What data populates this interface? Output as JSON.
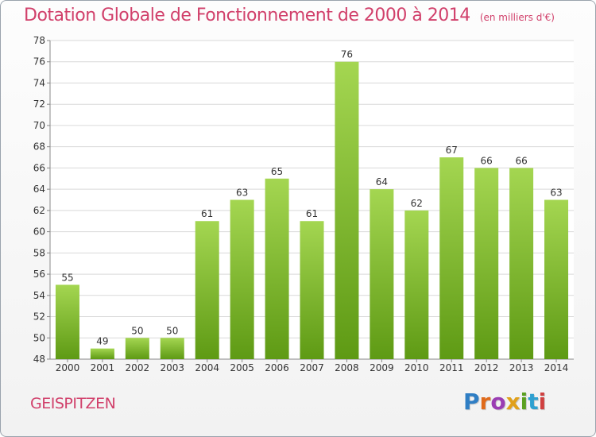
{
  "title": "Dotation Globale de Fonctionnement de 2000 à 2014",
  "subtitle": "(en milliers d'€)",
  "location": "GEISPITZEN",
  "logo": {
    "text": "Proxiti",
    "colors": [
      "#2f7ec4",
      "#e06a1a",
      "#9a3db3",
      "#e0a01a",
      "#5aa020",
      "#2fa0d0",
      "#d04040"
    ]
  },
  "colors": {
    "title": "#d1406b",
    "bar_light": "#a4d651",
    "bar_dark": "#5e9a14",
    "grid": "#d9d9d9"
  },
  "chart_data": {
    "type": "bar",
    "categories": [
      "2000",
      "2001",
      "2002",
      "2003",
      "2004",
      "2005",
      "2006",
      "2007",
      "2008",
      "2009",
      "2010",
      "2011",
      "2012",
      "2013",
      "2014"
    ],
    "values": [
      55,
      49,
      50,
      50,
      61,
      63,
      65,
      61,
      76,
      64,
      62,
      67,
      66,
      66,
      63
    ],
    "ylim": [
      48,
      78
    ],
    "yticks": [
      48,
      50,
      52,
      54,
      56,
      58,
      60,
      62,
      64,
      66,
      68,
      70,
      72,
      74,
      76,
      78
    ],
    "grid": true
  }
}
